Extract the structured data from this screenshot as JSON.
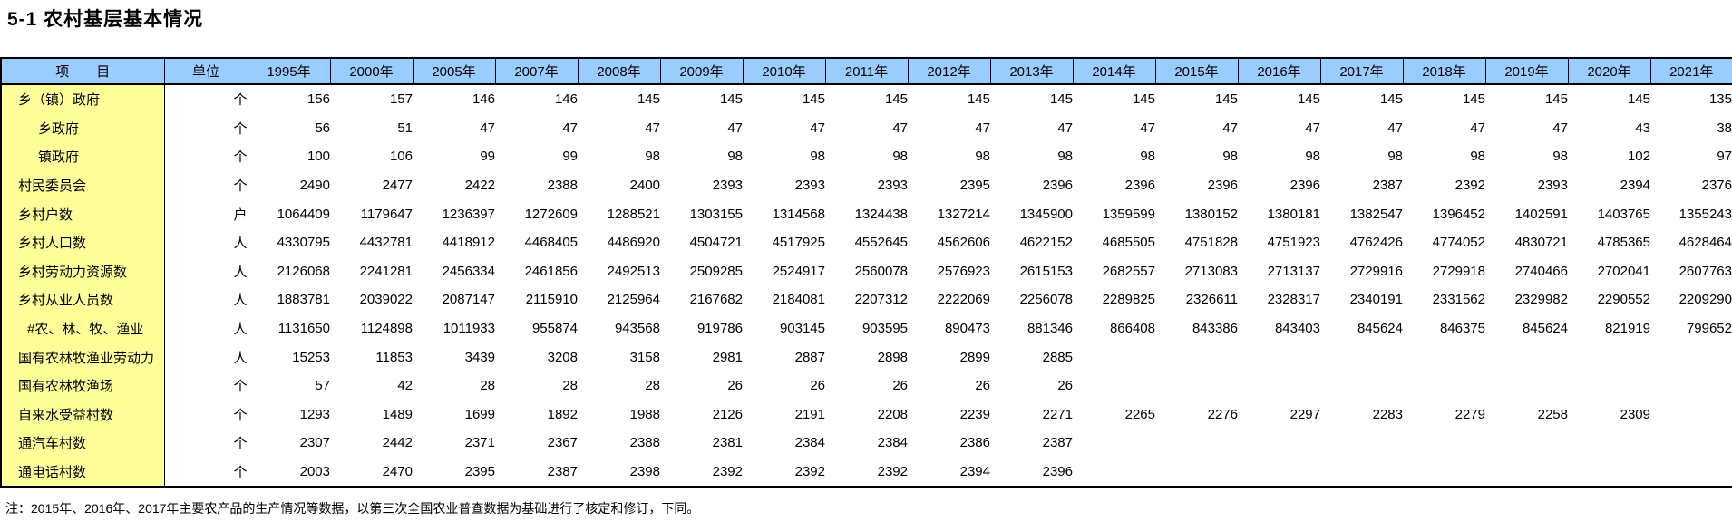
{
  "page": {
    "title": "5-1 农村基层基本情况",
    "note": "注：2015年、2016年、2017年主要农产品的生产情况等数据，以第三次全国农业普查数据为基础进行了核定和修订，下同。"
  },
  "colors": {
    "header_bg": "#99CCFF",
    "item_col_bg": "#FFFF99",
    "border": "#000000",
    "text": "#000000"
  },
  "table": {
    "item_header": "项　　目",
    "unit_header": "单位",
    "year_columns": [
      "1995年",
      "2000年",
      "2005年",
      "2007年",
      "2008年",
      "2009年",
      "2010年",
      "2011年",
      "2012年",
      "2013年",
      "2014年",
      "2015年",
      "2016年",
      "2017年",
      "2018年",
      "2019年",
      "2020年",
      "2021年"
    ],
    "rows": [
      {
        "label": "乡（镇）政府",
        "unit": "个",
        "indent": 0,
        "values": [
          156,
          157,
          146,
          146,
          145,
          145,
          145,
          145,
          145,
          145,
          145,
          145,
          145,
          145,
          145,
          145,
          145,
          135
        ]
      },
      {
        "label": "乡政府",
        "unit": "个",
        "indent": 1,
        "values": [
          56,
          51,
          47,
          47,
          47,
          47,
          47,
          47,
          47,
          47,
          47,
          47,
          47,
          47,
          47,
          47,
          43,
          38
        ]
      },
      {
        "label": "镇政府",
        "unit": "个",
        "indent": 1,
        "values": [
          100,
          106,
          99,
          99,
          98,
          98,
          98,
          98,
          98,
          98,
          98,
          98,
          98,
          98,
          98,
          98,
          102,
          97
        ]
      },
      {
        "label": "村民委员会",
        "unit": "个",
        "indent": 0,
        "values": [
          2490,
          2477,
          2422,
          2388,
          2400,
          2393,
          2393,
          2393,
          2395,
          2396,
          2396,
          2396,
          2396,
          2387,
          2392,
          2393,
          2394,
          2376
        ]
      },
      {
        "label": "乡村户数",
        "unit": "户",
        "indent": 0,
        "values": [
          1064409,
          1179647,
          1236397,
          1272609,
          1288521,
          1303155,
          1314568,
          1324438,
          1327214,
          1345900,
          1359599,
          1380152,
          1380181,
          1382547,
          1396452,
          1402591,
          1403765,
          1355243
        ]
      },
      {
        "label": "乡村人口数",
        "unit": "人",
        "indent": 0,
        "values": [
          4330795,
          4432781,
          4418912,
          4468405,
          4486920,
          4504721,
          4517925,
          4552645,
          4562606,
          4622152,
          4685505,
          4751828,
          4751923,
          4762426,
          4774052,
          4830721,
          4785365,
          4628464
        ]
      },
      {
        "label": "乡村劳动力资源数",
        "unit": "人",
        "indent": 0,
        "values": [
          2126068,
          2241281,
          2456334,
          2461856,
          2492513,
          2509285,
          2524917,
          2560078,
          2576923,
          2615153,
          2682557,
          2713083,
          2713137,
          2729916,
          2729918,
          2740466,
          2702041,
          2607763
        ]
      },
      {
        "label": "乡村从业人员数",
        "unit": "人",
        "indent": 0,
        "values": [
          1883781,
          2039022,
          2087147,
          2115910,
          2125964,
          2167682,
          2184081,
          2207312,
          2222069,
          2256078,
          2289825,
          2326611,
          2328317,
          2340191,
          2331562,
          2329982,
          2290552,
          2209290
        ]
      },
      {
        "label": "#农、林、牧、渔业",
        "unit": "人",
        "indent": 2,
        "values": [
          1131650,
          1124898,
          1011933,
          955874,
          943568,
          919786,
          903145,
          903595,
          890473,
          881346,
          866408,
          843386,
          843403,
          845624,
          846375,
          845624,
          821919,
          799652
        ]
      },
      {
        "label": "国有农林牧渔业劳动力",
        "unit": "人",
        "indent": 0,
        "values": [
          15253,
          11853,
          3439,
          3208,
          3158,
          2981,
          2887,
          2898,
          2899,
          2885,
          "",
          "",
          "",
          "",
          "",
          "",
          "",
          ""
        ]
      },
      {
        "label": "国有农林牧渔场",
        "unit": "个",
        "indent": 0,
        "values": [
          57,
          42,
          28,
          28,
          28,
          26,
          26,
          26,
          26,
          26,
          "",
          "",
          "",
          "",
          "",
          "",
          "",
          ""
        ]
      },
      {
        "label": "自来水受益村数",
        "unit": "个",
        "indent": 0,
        "values": [
          1293,
          1489,
          1699,
          1892,
          1988,
          2126,
          2191,
          2208,
          2239,
          2271,
          2265,
          2276,
          2297,
          2283,
          2279,
          2258,
          2309,
          ""
        ]
      },
      {
        "label": "通汽车村数",
        "unit": "个",
        "indent": 0,
        "values": [
          2307,
          2442,
          2371,
          2367,
          2388,
          2381,
          2384,
          2384,
          2386,
          2387,
          "",
          "",
          "",
          "",
          "",
          "",
          "",
          ""
        ]
      },
      {
        "label": "通电话村数",
        "unit": "个",
        "indent": 0,
        "values": [
          2003,
          2470,
          2395,
          2387,
          2398,
          2392,
          2392,
          2392,
          2394,
          2396,
          "",
          "",
          "",
          "",
          "",
          "",
          "",
          ""
        ]
      }
    ],
    "layout": {
      "item_col_width": 180,
      "unit_col_width": 92,
      "year_col_width": 91
    }
  }
}
